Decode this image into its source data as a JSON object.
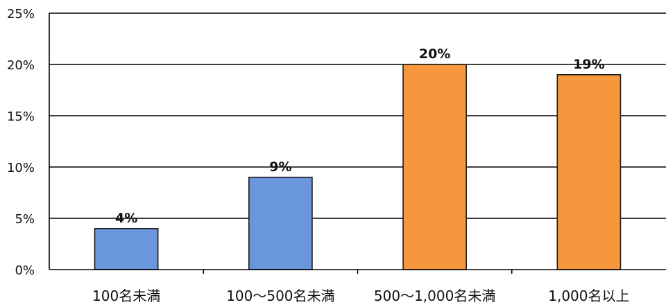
{
  "chart_data": {
    "type": "bar",
    "title": "",
    "xlabel": "",
    "ylabel": "",
    "categories": [
      "100名未満",
      "100～500名未満",
      "500～1,000名未満",
      "1,000名以上"
    ],
    "values": [
      4,
      9,
      20,
      19
    ],
    "data_labels": [
      "4%",
      "9%",
      "20%",
      "19%"
    ],
    "bar_colors": [
      "#6a97dc",
      "#6a97dc",
      "#f7963c",
      "#f7963c"
    ],
    "ylim": [
      0,
      25
    ],
    "yticks": [
      0,
      5,
      10,
      15,
      20,
      25
    ],
    "ytick_labels": [
      "0%",
      "5%",
      "10%",
      "15%",
      "20%",
      "25%"
    ],
    "grid": true,
    "legend": "none"
  }
}
